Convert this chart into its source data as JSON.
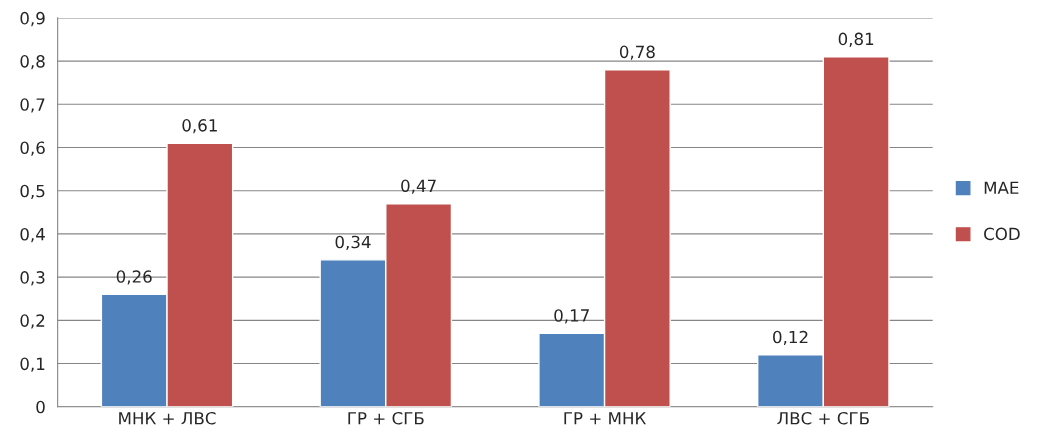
{
  "chart_data": {
    "type": "bar",
    "categories": [
      "МНК + ЛВС",
      "ГР + СГБ",
      "ГР + МНК",
      "ЛВС + СГБ"
    ],
    "series": [
      {
        "name": "MAE",
        "color": "#4f81bd",
        "values": [
          0.26,
          0.34,
          0.17,
          0.12
        ],
        "value_labels": [
          "0,26",
          "0,34",
          "0,17",
          "0,12"
        ]
      },
      {
        "name": "COD",
        "color": "#c0504d",
        "values": [
          0.61,
          0.47,
          0.78,
          0.81
        ],
        "value_labels": [
          "0,61",
          "0,47",
          "0,78",
          "0,81"
        ]
      }
    ],
    "ylim": [
      0,
      0.9
    ],
    "yticks": [
      0,
      {
        "value": 0.1,
        "label": "0,1"
      },
      {
        "value": 0.2,
        "label": "0,2"
      },
      {
        "value": 0.3,
        "label": "0,3"
      },
      {
        "value": 0.4,
        "label": "0,4"
      },
      {
        "value": 0.5,
        "label": "0,5"
      },
      {
        "value": 0.6,
        "label": "0,6"
      },
      {
        "value": 0.7,
        "label": "0,7"
      },
      {
        "value": 0.8,
        "label": "0,8"
      },
      {
        "value": 0.9,
        "label": "0,9"
      }
    ],
    "grid": "y",
    "legend": "right"
  }
}
